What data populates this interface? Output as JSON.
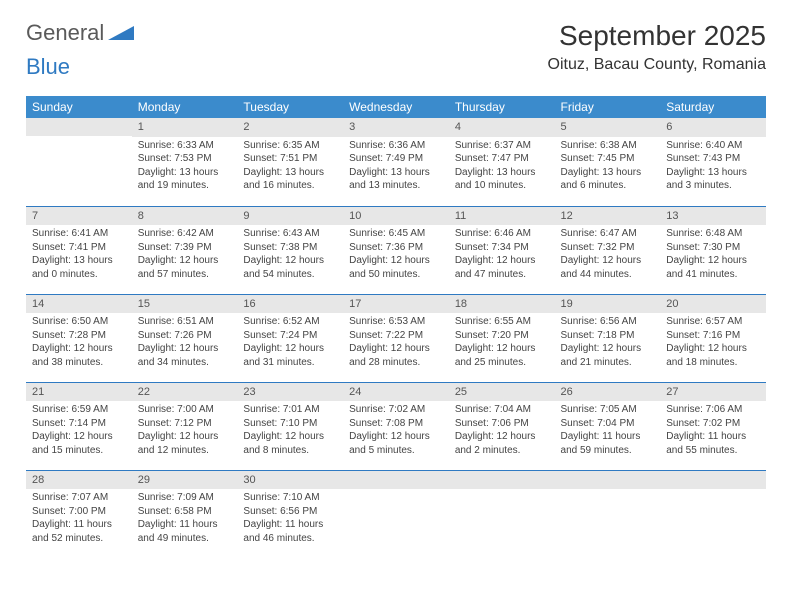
{
  "logo": {
    "word1": "General",
    "word2": "Blue"
  },
  "title": "September 2025",
  "location": "Oituz, Bacau County, Romania",
  "colors": {
    "header_bg": "#3b8bcc",
    "header_text": "#ffffff",
    "daynum_bg": "#e7e7e7",
    "row_sep": "#2f7ac2",
    "logo_gray": "#5a5a5a",
    "logo_blue": "#2f7ac2"
  },
  "weekdays": [
    "Sunday",
    "Monday",
    "Tuesday",
    "Wednesday",
    "Thursday",
    "Friday",
    "Saturday"
  ],
  "weeks": [
    [
      null,
      {
        "n": "1",
        "sr": "6:33 AM",
        "ss": "7:53 PM",
        "dl": "13 hours and 19 minutes."
      },
      {
        "n": "2",
        "sr": "6:35 AM",
        "ss": "7:51 PM",
        "dl": "13 hours and 16 minutes."
      },
      {
        "n": "3",
        "sr": "6:36 AM",
        "ss": "7:49 PM",
        "dl": "13 hours and 13 minutes."
      },
      {
        "n": "4",
        "sr": "6:37 AM",
        "ss": "7:47 PM",
        "dl": "13 hours and 10 minutes."
      },
      {
        "n": "5",
        "sr": "6:38 AM",
        "ss": "7:45 PM",
        "dl": "13 hours and 6 minutes."
      },
      {
        "n": "6",
        "sr": "6:40 AM",
        "ss": "7:43 PM",
        "dl": "13 hours and 3 minutes."
      }
    ],
    [
      {
        "n": "7",
        "sr": "6:41 AM",
        "ss": "7:41 PM",
        "dl": "13 hours and 0 minutes."
      },
      {
        "n": "8",
        "sr": "6:42 AM",
        "ss": "7:39 PM",
        "dl": "12 hours and 57 minutes."
      },
      {
        "n": "9",
        "sr": "6:43 AM",
        "ss": "7:38 PM",
        "dl": "12 hours and 54 minutes."
      },
      {
        "n": "10",
        "sr": "6:45 AM",
        "ss": "7:36 PM",
        "dl": "12 hours and 50 minutes."
      },
      {
        "n": "11",
        "sr": "6:46 AM",
        "ss": "7:34 PM",
        "dl": "12 hours and 47 minutes."
      },
      {
        "n": "12",
        "sr": "6:47 AM",
        "ss": "7:32 PM",
        "dl": "12 hours and 44 minutes."
      },
      {
        "n": "13",
        "sr": "6:48 AM",
        "ss": "7:30 PM",
        "dl": "12 hours and 41 minutes."
      }
    ],
    [
      {
        "n": "14",
        "sr": "6:50 AM",
        "ss": "7:28 PM",
        "dl": "12 hours and 38 minutes."
      },
      {
        "n": "15",
        "sr": "6:51 AM",
        "ss": "7:26 PM",
        "dl": "12 hours and 34 minutes."
      },
      {
        "n": "16",
        "sr": "6:52 AM",
        "ss": "7:24 PM",
        "dl": "12 hours and 31 minutes."
      },
      {
        "n": "17",
        "sr": "6:53 AM",
        "ss": "7:22 PM",
        "dl": "12 hours and 28 minutes."
      },
      {
        "n": "18",
        "sr": "6:55 AM",
        "ss": "7:20 PM",
        "dl": "12 hours and 25 minutes."
      },
      {
        "n": "19",
        "sr": "6:56 AM",
        "ss": "7:18 PM",
        "dl": "12 hours and 21 minutes."
      },
      {
        "n": "20",
        "sr": "6:57 AM",
        "ss": "7:16 PM",
        "dl": "12 hours and 18 minutes."
      }
    ],
    [
      {
        "n": "21",
        "sr": "6:59 AM",
        "ss": "7:14 PM",
        "dl": "12 hours and 15 minutes."
      },
      {
        "n": "22",
        "sr": "7:00 AM",
        "ss": "7:12 PM",
        "dl": "12 hours and 12 minutes."
      },
      {
        "n": "23",
        "sr": "7:01 AM",
        "ss": "7:10 PM",
        "dl": "12 hours and 8 minutes."
      },
      {
        "n": "24",
        "sr": "7:02 AM",
        "ss": "7:08 PM",
        "dl": "12 hours and 5 minutes."
      },
      {
        "n": "25",
        "sr": "7:04 AM",
        "ss": "7:06 PM",
        "dl": "12 hours and 2 minutes."
      },
      {
        "n": "26",
        "sr": "7:05 AM",
        "ss": "7:04 PM",
        "dl": "11 hours and 59 minutes."
      },
      {
        "n": "27",
        "sr": "7:06 AM",
        "ss": "7:02 PM",
        "dl": "11 hours and 55 minutes."
      }
    ],
    [
      {
        "n": "28",
        "sr": "7:07 AM",
        "ss": "7:00 PM",
        "dl": "11 hours and 52 minutes."
      },
      {
        "n": "29",
        "sr": "7:09 AM",
        "ss": "6:58 PM",
        "dl": "11 hours and 49 minutes."
      },
      {
        "n": "30",
        "sr": "7:10 AM",
        "ss": "6:56 PM",
        "dl": "11 hours and 46 minutes."
      },
      null,
      null,
      null,
      null
    ]
  ],
  "labels": {
    "sunrise": "Sunrise:",
    "sunset": "Sunset:",
    "daylight": "Daylight:"
  }
}
